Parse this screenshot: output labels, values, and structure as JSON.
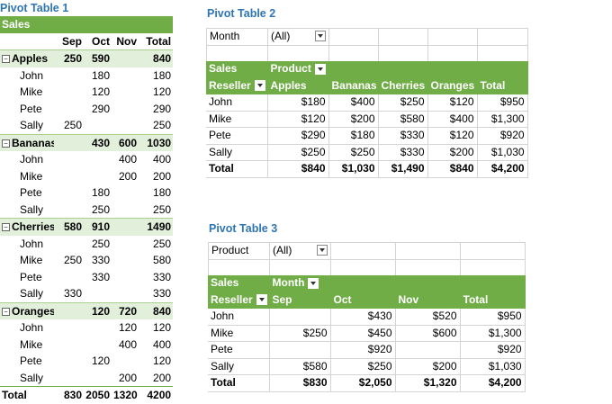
{
  "pt1": {
    "title": "Pivot Table 1",
    "values_label": "Sales",
    "columns": [
      "Sep",
      "Oct",
      "Nov",
      "Total"
    ],
    "groups": [
      {
        "name": "Apples",
        "vals": [
          "250",
          "590",
          "",
          "840"
        ],
        "rows": [
          {
            "name": "John",
            "vals": [
              "",
              "180",
              "",
              "180"
            ]
          },
          {
            "name": "Mike",
            "vals": [
              "",
              "120",
              "",
              "120"
            ]
          },
          {
            "name": "Pete",
            "vals": [
              "",
              "290",
              "",
              "290"
            ]
          },
          {
            "name": "Sally",
            "vals": [
              "250",
              "",
              "",
              "250"
            ]
          }
        ]
      },
      {
        "name": "Bananas",
        "vals": [
          "",
          "430",
          "600",
          "1030"
        ],
        "rows": [
          {
            "name": "John",
            "vals": [
              "",
              "",
              "400",
              "400"
            ]
          },
          {
            "name": "Mike",
            "vals": [
              "",
              "",
              "200",
              "200"
            ]
          },
          {
            "name": "Pete",
            "vals": [
              "",
              "180",
              "",
              "180"
            ]
          },
          {
            "name": "Sally",
            "vals": [
              "",
              "250",
              "",
              "250"
            ]
          }
        ]
      },
      {
        "name": "Cherries",
        "vals": [
          "580",
          "910",
          "",
          "1490"
        ],
        "rows": [
          {
            "name": "John",
            "vals": [
              "",
              "250",
              "",
              "250"
            ]
          },
          {
            "name": "Mike",
            "vals": [
              "250",
              "330",
              "",
              "580"
            ]
          },
          {
            "name": "Pete",
            "vals": [
              "",
              "330",
              "",
              "330"
            ]
          },
          {
            "name": "Sally",
            "vals": [
              "330",
              "",
              "",
              "330"
            ]
          }
        ]
      },
      {
        "name": "Oranges",
        "vals": [
          "",
          "120",
          "720",
          "840"
        ],
        "rows": [
          {
            "name": "John",
            "vals": [
              "",
              "",
              "120",
              "120"
            ]
          },
          {
            "name": "Mike",
            "vals": [
              "",
              "",
              "400",
              "400"
            ]
          },
          {
            "name": "Pete",
            "vals": [
              "",
              "120",
              "",
              "120"
            ]
          },
          {
            "name": "Sally",
            "vals": [
              "",
              "",
              "200",
              "200"
            ]
          }
        ]
      }
    ],
    "total": {
      "name": "Total",
      "vals": [
        "830",
        "2050",
        "1320",
        "4200"
      ]
    }
  },
  "pt2": {
    "title": "Pivot Table 2",
    "filter_label": "Month",
    "filter_value": "(All)",
    "values_label": "Sales",
    "col_field": "Product",
    "row_field": "Reseller",
    "columns": [
      "Apples",
      "Bananas",
      "Cherries",
      "Oranges",
      "Total"
    ],
    "rows": [
      {
        "name": "John",
        "vals": [
          "$180",
          "$400",
          "$250",
          "$120",
          "$950"
        ]
      },
      {
        "name": "Mike",
        "vals": [
          "$120",
          "$200",
          "$580",
          "$400",
          "$1,300"
        ]
      },
      {
        "name": "Pete",
        "vals": [
          "$290",
          "$180",
          "$330",
          "$120",
          "$920"
        ]
      },
      {
        "name": "Sally",
        "vals": [
          "$250",
          "$250",
          "$330",
          "$200",
          "$1,030"
        ]
      }
    ],
    "total": {
      "name": "Total",
      "vals": [
        "$840",
        "$1,030",
        "$1,490",
        "$840",
        "$4,200"
      ]
    }
  },
  "pt3": {
    "title": "Pivot Table 3",
    "filter_label": "Product",
    "filter_value": "(All)",
    "values_label": "Sales",
    "col_field": "Month",
    "row_field": "Reseller",
    "columns": [
      "Sep",
      "Oct",
      "Nov",
      "Total"
    ],
    "rows": [
      {
        "name": "John",
        "vals": [
          "",
          "$430",
          "$520",
          "$950"
        ]
      },
      {
        "name": "Mike",
        "vals": [
          "$250",
          "$450",
          "$600",
          "$1,300"
        ]
      },
      {
        "name": "Pete",
        "vals": [
          "",
          "$920",
          "",
          "$920"
        ]
      },
      {
        "name": "Sally",
        "vals": [
          "$580",
          "$250",
          "$200",
          "$1,030"
        ]
      }
    ],
    "total": {
      "name": "Total",
      "vals": [
        "$830",
        "$2,050",
        "$1,320",
        "$4,200"
      ]
    }
  }
}
